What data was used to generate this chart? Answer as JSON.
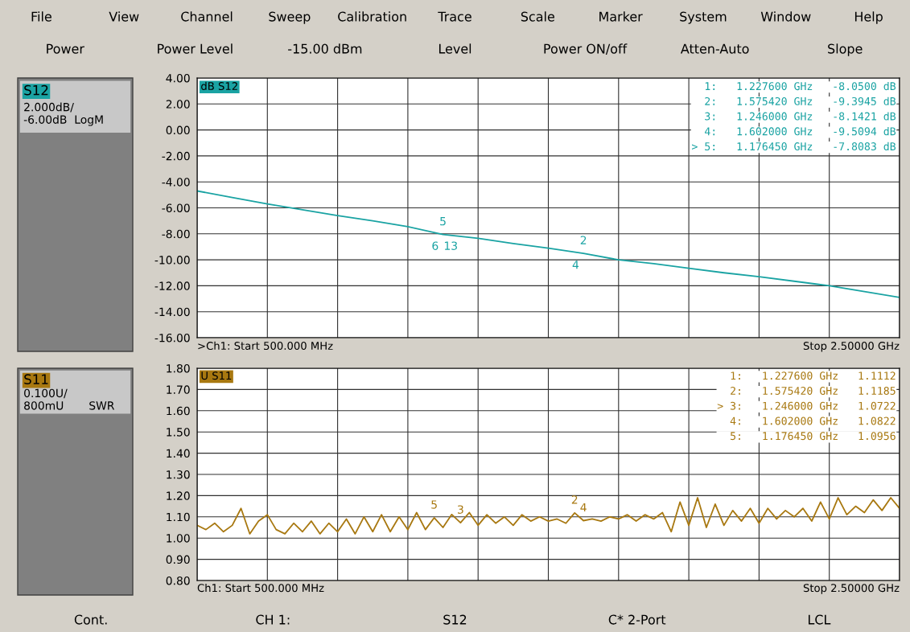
{
  "chart_data": [
    {
      "type": "line",
      "categories": [
        null,
        null,
        null,
        null,
        null,
        null,
        null,
        null,
        null,
        null,
        null,
        null,
        null,
        null,
        null,
        null,
        null,
        null,
        null,
        null,
        null
      ],
      "series": [
        {
          "color": "#1aa3a3",
          "values": [
            -4.7,
            -5.2,
            -5.7,
            -6.15,
            -6.6,
            -7.0,
            -7.45,
            -8.05,
            -8.35,
            -8.75,
            -9.1,
            -9.5094,
            -10.0,
            -10.3,
            -10.65,
            -11.0,
            -11.3,
            -11.65,
            -12.0,
            -12.45,
            -12.9
          ]
        }
      ],
      "ylim": [
        -16,
        4
      ],
      "yticks": [
        {
          "value": 4,
          "label": "4.00"
        },
        {
          "value": 2,
          "label": "2.00"
        },
        {
          "value": 0,
          "label": "0.00"
        },
        {
          "value": -2,
          "label": "-2.00"
        },
        {
          "value": -4,
          "label": "-4.00"
        },
        {
          "value": -6,
          "label": "-6.00"
        },
        {
          "value": -8,
          "label": "-8.00"
        },
        {
          "value": -10,
          "label": "-10.00"
        },
        {
          "value": -12,
          "label": "-12.00"
        },
        {
          "value": -14,
          "label": "-14.00"
        },
        {
          "value": -16,
          "label": "-16.00"
        }
      ],
      "tick_labels": "y",
      "grid": true,
      "line_style": "solid",
      "annotations": [
        "File",
        "View",
        "Channel",
        "Sweep",
        "Calibration",
        "Trace",
        "Scale",
        "Marker",
        "System",
        "Window",
        "Help",
        "Power",
        "Power Level",
        "-15.00 dBm",
        "Level",
        "Power ON/off",
        "Atten-Auto",
        "Slope",
        "S12",
        "2.000dB/\n-6.00dB  LogM",
        "dB S12",
        "  1:   1.227600 GHz   -8.0500 dB",
        "  2:   1.575420 GHz   -9.3945 dB",
        "  3:   1.246000 GHz   -8.1421 dB",
        "  4:   1.602000 GHz   -9.5094 dB",
        "> 5:   1.176450 GHz   -7.8083 dB",
        {
          "text": "5",
          "y": -8.05
        },
        {
          "text": "6",
          "y": -8.05
        },
        {
          "text": "13",
          "y": -8.05
        },
        {
          "text": "2",
          "y": -9.5094
        },
        {
          "text": "4",
          "y": -9.5094
        },
        ">Ch1: Start 500.000 MHz",
        "Stop 2.50000 GHz"
      ]
    },
    {
      "type": "line",
      "categories": [
        null,
        null,
        null,
        null,
        null,
        null,
        null,
        null,
        null,
        null,
        null,
        null,
        null,
        null,
        null,
        null,
        null,
        null,
        null,
        null,
        null,
        null,
        null,
        null,
        null,
        null,
        null,
        null,
        null,
        null,
        null,
        null,
        null,
        null,
        null,
        null,
        null,
        null,
        null,
        null,
        null,
        null,
        null,
        null,
        null,
        null,
        null,
        null,
        null,
        null,
        null,
        null,
        null,
        null,
        null,
        null,
        null,
        null,
        null,
        null,
        null,
        null,
        null,
        null,
        null,
        null,
        null,
        null,
        null,
        null,
        null,
        null,
        null,
        null,
        null,
        null,
        null,
        null,
        null,
        null,
        null
      ],
      "series": [
        {
          "color": "#a87810",
          "values": [
            1.06,
            1.04,
            1.07,
            1.03,
            1.06,
            1.14,
            1.02,
            1.08,
            1.11,
            1.04,
            1.02,
            1.07,
            1.03,
            1.08,
            1.02,
            1.07,
            1.03,
            1.09,
            1.02,
            1.1,
            1.03,
            1.11,
            1.03,
            1.1,
            1.04,
            1.12,
            1.04,
            1.0956,
            1.05,
            1.1112,
            1.0722,
            1.12,
            1.06,
            1.11,
            1.07,
            1.1,
            1.06,
            1.11,
            1.08,
            1.1,
            1.08,
            1.09,
            1.07,
            1.1185,
            1.0822,
            1.09,
            1.08,
            1.1,
            1.09,
            1.11,
            1.08,
            1.11,
            1.09,
            1.12,
            1.03,
            1.17,
            1.06,
            1.19,
            1.05,
            1.16,
            1.06,
            1.13,
            1.08,
            1.14,
            1.07,
            1.14,
            1.09,
            1.13,
            1.1,
            1.14,
            1.08,
            1.17,
            1.09,
            1.19,
            1.11,
            1.15,
            1.12,
            1.18,
            1.13,
            1.19,
            1.14
          ]
        }
      ],
      "ylim": [
        0.8,
        1.8
      ],
      "yticks": [
        {
          "value": 1.8,
          "label": "1.80"
        },
        {
          "value": 1.7,
          "label": "1.70"
        },
        {
          "value": 1.6,
          "label": "1.60"
        },
        {
          "value": 1.5,
          "label": "1.50"
        },
        {
          "value": 1.4,
          "label": "1.40"
        },
        {
          "value": 1.3,
          "label": "1.30"
        },
        {
          "value": 1.2,
          "label": "1.20"
        },
        {
          "value": 1.1,
          "label": "1.10"
        },
        {
          "value": 1.0,
          "label": "1.00"
        },
        {
          "value": 0.9,
          "label": "0.90"
        },
        {
          "value": 0.8,
          "label": "0.80"
        }
      ],
      "tick_labels": "y",
      "grid": true,
      "line_style": "solid",
      "annotations": [
        "S11",
        "0.100U/\n800mU       SWR",
        "U S11",
        "  1:   1.227600 GHz   1.1112",
        "  2:   1.575420 GHz   1.1185",
        "> 3:   1.246000 GHz   1.0722",
        "  4:   1.602000 GHz   1.0822",
        "  5:   1.176450 GHz   1.0956",
        {
          "text": "3",
          "y": 1.0722
        },
        {
          "text": "5",
          "y": 1.0956
        },
        {
          "text": "2",
          "y": 1.1185
        },
        {
          "text": "4",
          "y": 1.0822
        },
        "Ch1: Start 500.000 MHz",
        "Stop 2.50000 GHz",
        "Cont.",
        "CH 1:",
        "S12",
        "C* 2-Port",
        "LCL"
      ]
    }
  ]
}
